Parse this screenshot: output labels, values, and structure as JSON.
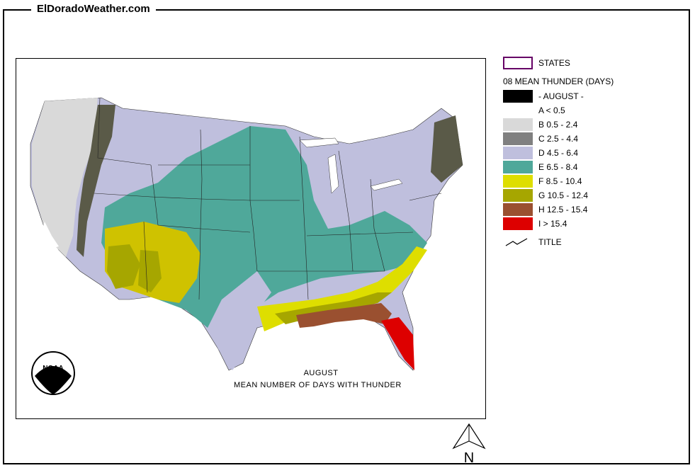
{
  "site_title": "ElDoradoWeather.com",
  "map": {
    "caption_line1": "AUGUST",
    "caption_line2": "MEAN NUMBER OF DAYS WITH THUNDER",
    "logo_text": "NOAA"
  },
  "legend": {
    "states_label": "STATES",
    "header": "08 MEAN THUNDER (DAYS)",
    "month_label": "- AUGUST -",
    "title_label": "TITLE",
    "classes": [
      {
        "label": "A < 0.5",
        "color": "#ffffff"
      },
      {
        "label": "B 0.5 - 2.4",
        "color": "#d9d9d9"
      },
      {
        "label": "C 2.5 - 4.4",
        "color": "#808080"
      },
      {
        "label": "D 4.5 - 6.4",
        "color": "#bfbfdd"
      },
      {
        "label": "E 6.5 - 8.4",
        "color": "#4fa89a"
      },
      {
        "label": "F 8.5 - 10.4",
        "color": "#dede00"
      },
      {
        "label": "G 10.5 - 12.4",
        "color": "#a6a600"
      },
      {
        "label": "H 12.5 - 15.4",
        "color": "#9a5030"
      },
      {
        "label": "I > 15.4",
        "color": "#dd0000"
      }
    ],
    "states_outline_color": "#660066",
    "month_swatch_color": "#000000"
  },
  "compass": {
    "label": "N"
  }
}
